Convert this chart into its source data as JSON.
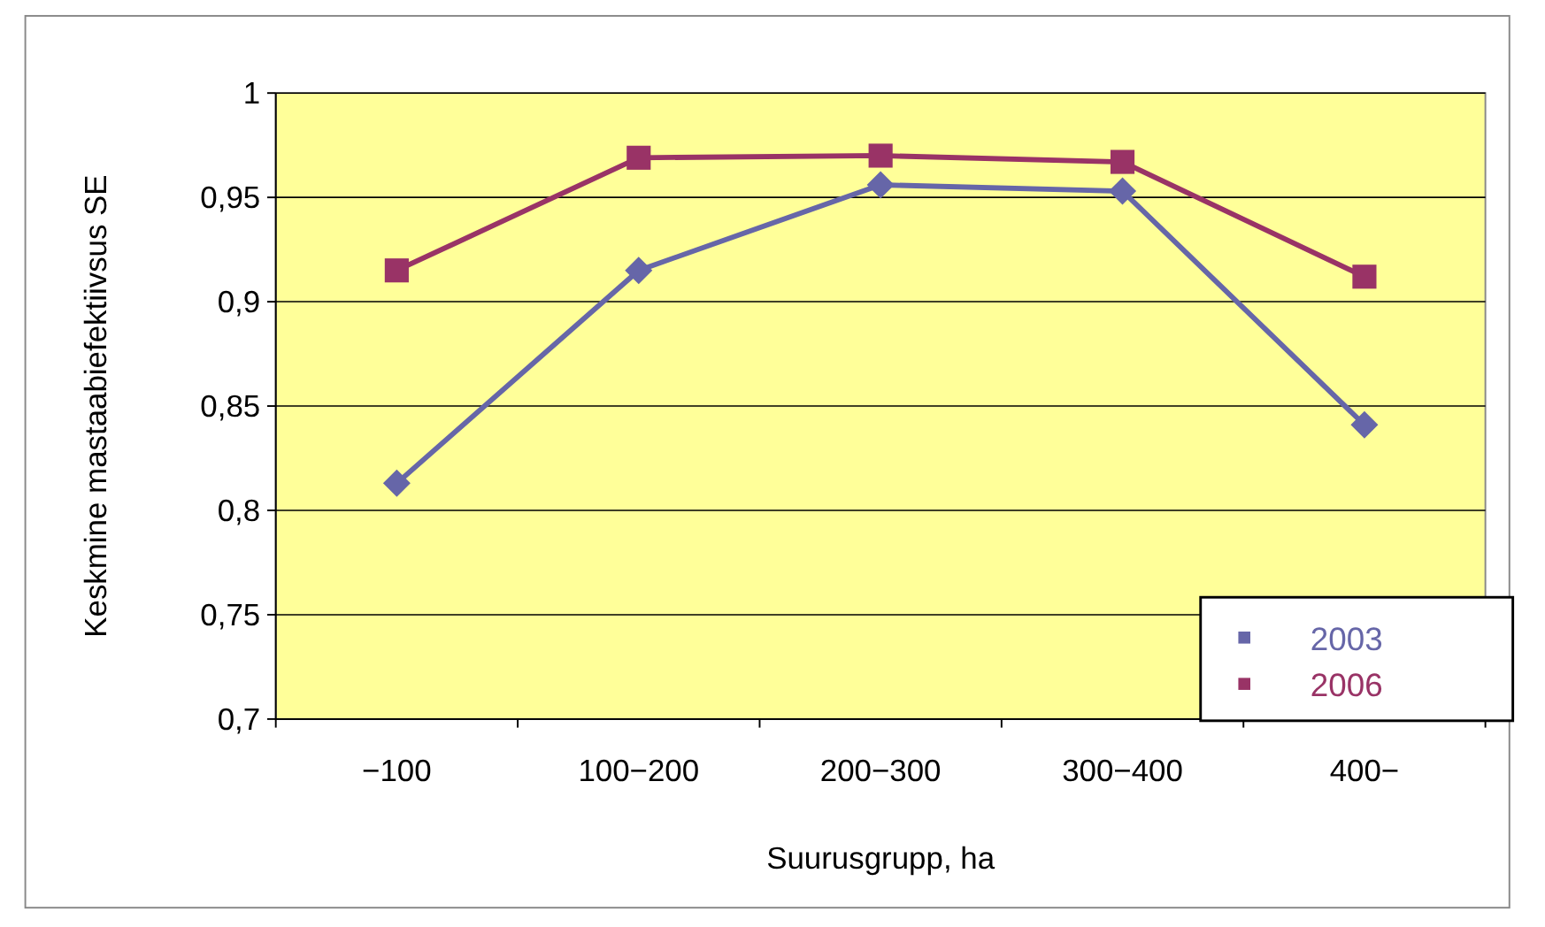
{
  "chart_data": {
    "type": "line",
    "xlabel": "Suurusgrupp, ha",
    "ylabel": "Keskmine mastaabiefektiivsus SE",
    "categories": [
      "−100",
      "100−200",
      "200−300",
      "300−400",
      "400−"
    ],
    "series": [
      {
        "name": "2003",
        "color": "#6666a8",
        "marker": "diamond",
        "values": [
          0.813,
          0.915,
          0.956,
          0.953,
          0.841
        ]
      },
      {
        "name": "2006",
        "color": "#993366",
        "marker": "square",
        "values": [
          0.915,
          0.969,
          0.97,
          0.967,
          0.912
        ]
      }
    ],
    "ylim": [
      0.7,
      1
    ],
    "yticks": [
      {
        "value": 0.7,
        "label": "0,7"
      },
      {
        "value": 0.75,
        "label": "0,75"
      },
      {
        "value": 0.8,
        "label": "0,8"
      },
      {
        "value": 0.85,
        "label": "0,85"
      },
      {
        "value": 0.9,
        "label": "0,9"
      },
      {
        "value": 0.95,
        "label": "0,95"
      },
      {
        "value": 1,
        "label": "1"
      }
    ],
    "grid": "y",
    "legend": "bottom right"
  }
}
